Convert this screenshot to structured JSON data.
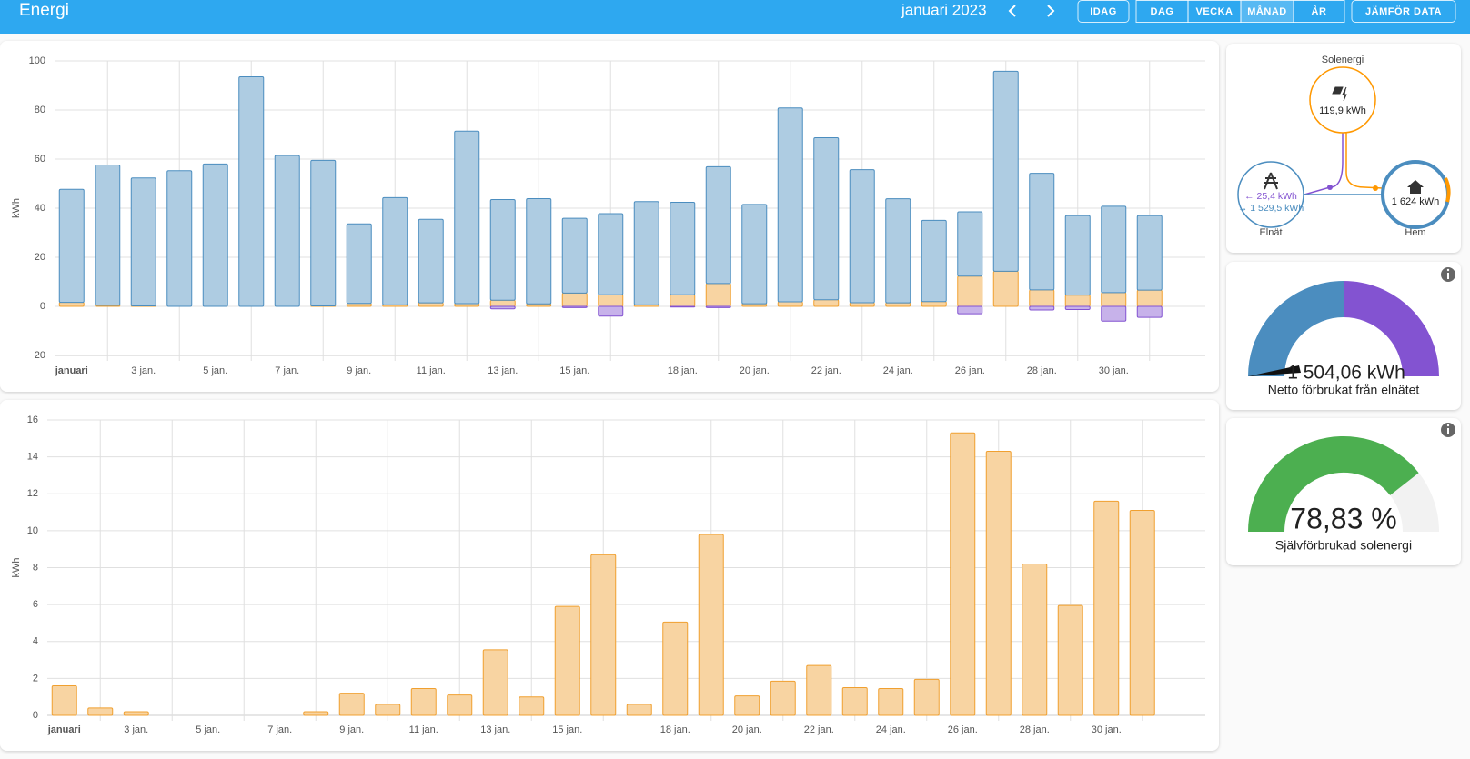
{
  "header": {
    "title": "Energi",
    "period": "januari 2023",
    "buttons": [
      "IDAG",
      "DAG",
      "VECKA",
      "MÅNAD",
      "ÅR",
      "JÄMFÖR DATA"
    ]
  },
  "chart_data": [
    {
      "type": "bar",
      "y_label": "kWh",
      "categories": [
        "januari",
        null,
        "3 jan.",
        null,
        "5 jan.",
        null,
        "7 jan.",
        null,
        "9 jan.",
        null,
        "11 jan.",
        null,
        "13 jan.",
        null,
        "15 jan.",
        null,
        null,
        "18 jan.",
        null,
        "20 jan.",
        null,
        "22 jan.",
        null,
        "24 jan.",
        null,
        "26 jan.",
        null,
        "28 jan.",
        null,
        "30 jan.",
        null
      ],
      "series": [
        {
          "color": "#f0a030",
          "values": [
            1.6,
            0.4,
            0.2,
            0,
            0,
            0,
            0,
            0.2,
            1.2,
            0.6,
            1.45,
            1.1,
            2.5,
            1.0,
            5.4,
            4.7,
            0.6,
            4.7,
            9.3,
            1.05,
            1.85,
            2.7,
            1.5,
            1.45,
            1.95,
            12.3,
            14.3,
            6.7,
            4.6,
            5.6,
            6.6
          ]
        },
        {
          "color": "#4b8dbf",
          "values": [
            46.1,
            57.2,
            52.1,
            55.3,
            58,
            93.5,
            61.5,
            59.3,
            32.4,
            43.7,
            34,
            70.3,
            41,
            42.9,
            30.5,
            33.1,
            42.1,
            37.7,
            47.6,
            40.5,
            79,
            66,
            54.2,
            42.4,
            33.1,
            26.2,
            81.5,
            47.5,
            32.4,
            35.2,
            30.4
          ]
        },
        {
          "color": "#8353d1",
          "values": [
            0,
            0,
            0,
            0,
            0,
            0,
            0,
            0,
            0,
            0,
            0,
            0,
            -1,
            0,
            -0.5,
            -4,
            0,
            -0.3,
            -0.5,
            0,
            0,
            0,
            0,
            0,
            0,
            -3,
            0,
            -1.5,
            -1.3,
            -6,
            -4.5
          ]
        }
      ],
      "ylim": [
        -20,
        100
      ],
      "yticks": [
        {
          "value": -20,
          "label": "20"
        },
        0,
        20,
        40,
        60,
        80,
        100
      ],
      "grid": true
    },
    {
      "type": "bar",
      "y_label": "kWh",
      "categories": [
        "januari",
        null,
        "3 jan.",
        null,
        "5 jan.",
        null,
        "7 jan.",
        null,
        "9 jan.",
        null,
        "11 jan.",
        null,
        "13 jan.",
        null,
        "15 jan.",
        null,
        null,
        "18 jan.",
        null,
        "20 jan.",
        null,
        "22 jan.",
        null,
        "24 jan.",
        null,
        "26 jan.",
        null,
        "28 jan.",
        null,
        "30 jan.",
        null
      ],
      "color": "#f0a030",
      "values": [
        1.6,
        0.4,
        0.2,
        0,
        0,
        0,
        0,
        0.2,
        1.2,
        0.6,
        1.45,
        1.1,
        3.55,
        1.0,
        5.9,
        8.7,
        0.6,
        5.05,
        9.8,
        1.05,
        1.85,
        2.7,
        1.5,
        1.45,
        1.95,
        15.3,
        14.3,
        8.2,
        5.95,
        11.6,
        11.1
      ],
      "ylim": [
        0,
        16
      ],
      "yticks": [
        0,
        2,
        4,
        6,
        8,
        10,
        12,
        14,
        16
      ],
      "grid": true
    }
  ],
  "flow": {
    "solar_label": "Solenergi",
    "solar_value": "119,9 kWh",
    "grid_label": "Elnät",
    "grid_return": "← 25,4 kWh",
    "grid_import": "→ 1 529,5 kWh",
    "home_label": "Hem",
    "home_value": "1 624 kWh"
  },
  "gauges": [
    {
      "value_label": "1 504,06 kWh",
      "title": "Netto förbrukat från elnätet"
    },
    {
      "value": 78.83,
      "value_label": "78,83 %",
      "title": "Självförbrukad solenergi",
      "color": "#4caf50"
    }
  ]
}
